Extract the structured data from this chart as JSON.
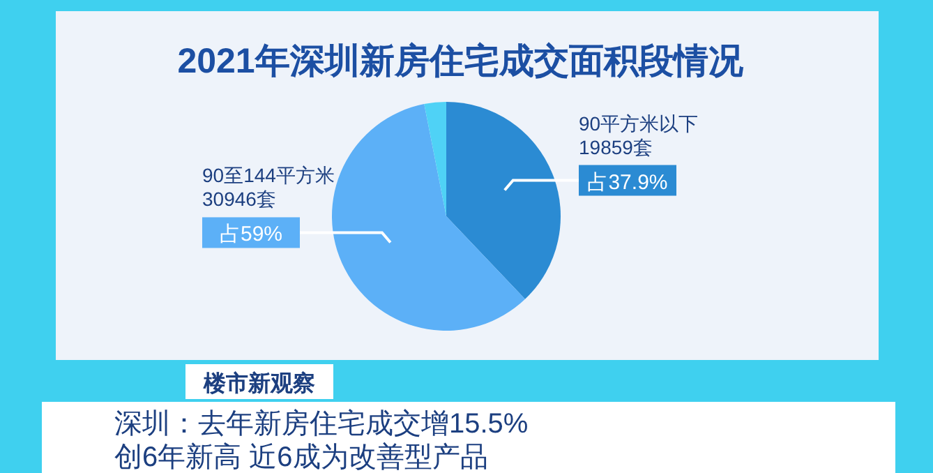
{
  "chart_data": {
    "type": "pie",
    "title": "2021年深圳新房住宅成交面积段情况",
    "categories": [
      "90平方米以下",
      "90至144平方米",
      null
    ],
    "values": [
      37.9,
      59,
      3.1
    ],
    "colors": [
      "#2b8bd3",
      "#5cb0f7",
      "#4fd2f6"
    ],
    "value_labels": [
      "占37.9%",
      "占59%",
      null
    ],
    "annotations": [
      "19859套",
      "30946套",
      "楼市新观察",
      "深圳：去年新房住宅成交增15.5%",
      "创6年新高  近6成为改善型产品"
    ]
  }
}
